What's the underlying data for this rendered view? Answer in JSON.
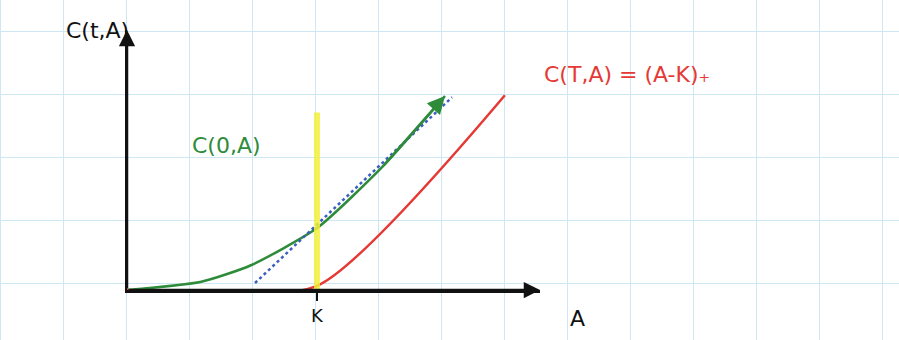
{
  "chart_data": {
    "type": "line",
    "x_label": "A",
    "y_label": "C(t,A)",
    "xlim": [
      0,
      10
    ],
    "ylim": [
      0,
      6.3
    ],
    "xticks": [
      {
        "value": 4.6,
        "label": "K"
      }
    ],
    "yticks": [],
    "tick_labels": "x",
    "series": [
      {
        "name": "C(0,A)",
        "color": "#2e8b3a",
        "line_style": "solid",
        "marker": "arrow",
        "x": [
          0,
          1.8,
          3,
          4.6,
          6.2,
          7.7
        ],
        "values": [
          0,
          0.2,
          0.6,
          1.5,
          3.0,
          4.7
        ]
      },
      {
        "name": "C(T,A) = (A-K)₊",
        "color": "#e53935",
        "line_style": "solid",
        "x": [
          0,
          4.6,
          9.15
        ],
        "values": [
          0,
          0.1,
          4.72
        ]
      },
      {
        "color": "#3b5fc0",
        "line_style": "dotted",
        "x": [
          3.1,
          7.87
        ],
        "values": [
          0.17,
          4.67
        ]
      },
      {
        "color": "#f2ee3c",
        "line_style": "solid",
        "x": [
          4.6,
          4.6
        ],
        "values": [
          0,
          4.3
        ]
      }
    ]
  }
}
